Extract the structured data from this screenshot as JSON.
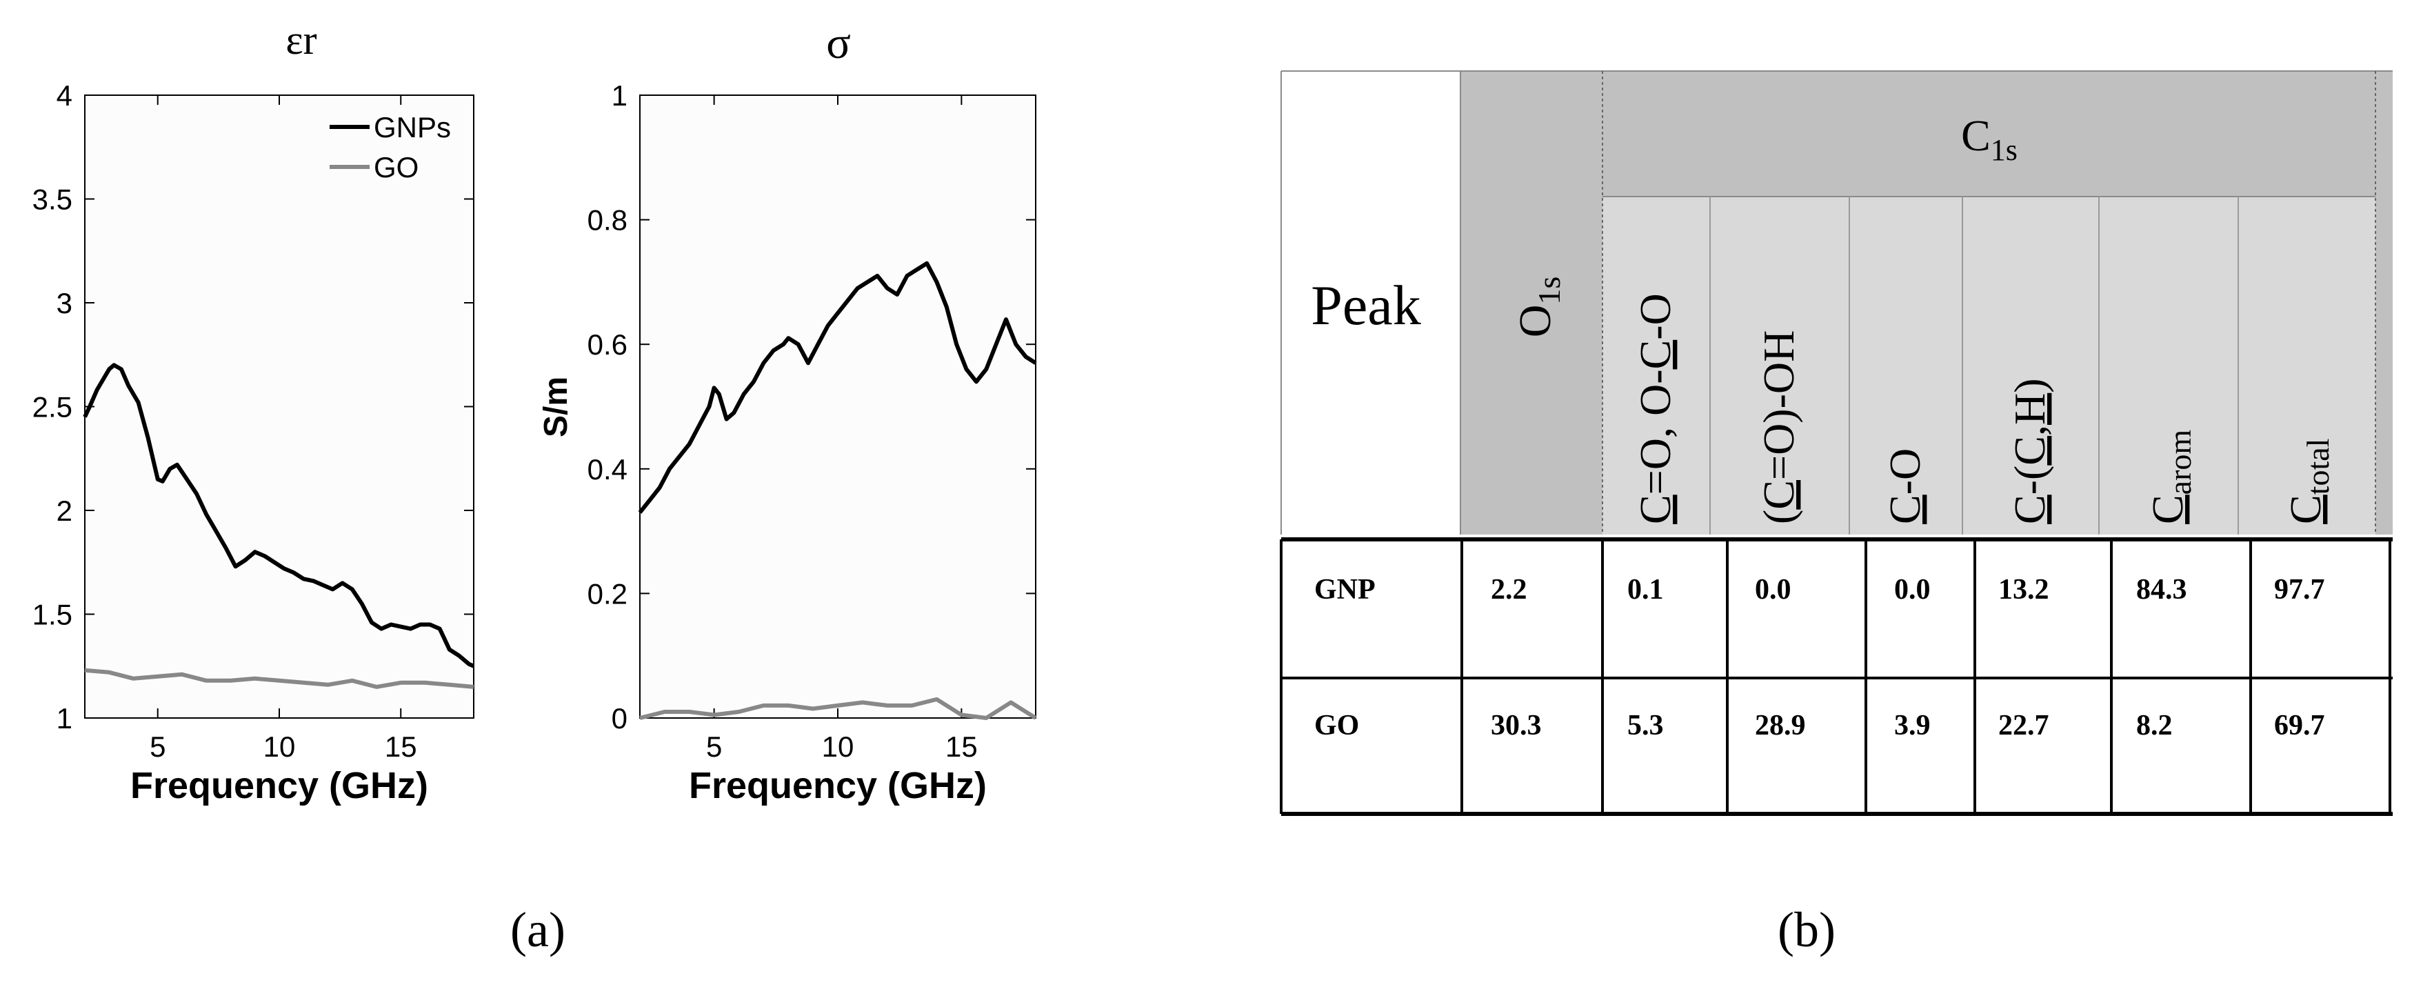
{
  "chart_data": [
    {
      "type": "line",
      "title": "εr",
      "xlabel": "Frequency (GHz)",
      "ylabel": "",
      "xlim": [
        2,
        18
      ],
      "ylim": [
        1,
        4
      ],
      "xticks": [
        "5",
        "10",
        "15"
      ],
      "yticks": [
        "1",
        "1.5",
        "2",
        "2.5",
        "3",
        "3.5",
        "4"
      ],
      "grid": false,
      "legend_position": "top-right",
      "series": [
        {
          "name": "GNPs",
          "color": "#000000",
          "x": [
            2.0,
            2.2,
            2.5,
            2.8,
            3.0,
            3.2,
            3.5,
            3.8,
            4.2,
            4.6,
            5.0,
            5.2,
            5.5,
            5.8,
            6.2,
            6.6,
            7.0,
            7.4,
            7.8,
            8.2,
            8.6,
            9.0,
            9.4,
            9.8,
            10.2,
            10.6,
            11.0,
            11.4,
            11.8,
            12.2,
            12.6,
            13.0,
            13.4,
            13.8,
            14.2,
            14.6,
            15.0,
            15.4,
            15.8,
            16.2,
            16.6,
            17.0,
            17.4,
            17.8,
            18.0
          ],
          "values": [
            2.45,
            2.5,
            2.58,
            2.64,
            2.68,
            2.7,
            2.68,
            2.6,
            2.52,
            2.35,
            2.15,
            2.14,
            2.2,
            2.22,
            2.15,
            2.08,
            1.98,
            1.9,
            1.82,
            1.73,
            1.76,
            1.8,
            1.78,
            1.75,
            1.72,
            1.7,
            1.67,
            1.66,
            1.64,
            1.62,
            1.65,
            1.62,
            1.55,
            1.46,
            1.43,
            1.45,
            1.44,
            1.43,
            1.45,
            1.45,
            1.43,
            1.33,
            1.3,
            1.26,
            1.25
          ]
        },
        {
          "name": "GO",
          "color": "#888888",
          "x": [
            2,
            3,
            4,
            5,
            6,
            7,
            8,
            9,
            10,
            11,
            12,
            13,
            14,
            15,
            16,
            17,
            18
          ],
          "values": [
            1.23,
            1.22,
            1.19,
            1.2,
            1.21,
            1.18,
            1.18,
            1.19,
            1.18,
            1.17,
            1.16,
            1.18,
            1.15,
            1.17,
            1.17,
            1.16,
            1.15
          ]
        }
      ]
    },
    {
      "type": "line",
      "title": "σ",
      "xlabel": "Frequency (GHz)",
      "ylabel": "S/m",
      "xlim": [
        2,
        18
      ],
      "ylim": [
        0,
        1
      ],
      "xticks": [
        "5",
        "10",
        "15"
      ],
      "yticks": [
        "0",
        "0.2",
        "0.4",
        "0.6",
        "0.8",
        "1"
      ],
      "grid": false,
      "series": [
        {
          "name": "GNPs",
          "color": "#000000",
          "x": [
            2.0,
            2.4,
            2.8,
            3.2,
            3.6,
            4.0,
            4.4,
            4.8,
            5.0,
            5.2,
            5.5,
            5.8,
            6.2,
            6.6,
            7.0,
            7.4,
            7.8,
            8.0,
            8.4,
            8.8,
            9.2,
            9.6,
            10.0,
            10.4,
            10.8,
            11.2,
            11.6,
            12.0,
            12.4,
            12.8,
            13.2,
            13.6,
            14.0,
            14.4,
            14.8,
            15.2,
            15.6,
            16.0,
            16.4,
            16.8,
            17.2,
            17.6,
            18.0
          ],
          "values": [
            0.33,
            0.35,
            0.37,
            0.4,
            0.42,
            0.44,
            0.47,
            0.5,
            0.53,
            0.52,
            0.48,
            0.49,
            0.52,
            0.54,
            0.57,
            0.59,
            0.6,
            0.61,
            0.6,
            0.57,
            0.6,
            0.63,
            0.65,
            0.67,
            0.69,
            0.7,
            0.71,
            0.69,
            0.68,
            0.71,
            0.72,
            0.73,
            0.7,
            0.66,
            0.6,
            0.56,
            0.54,
            0.56,
            0.6,
            0.64,
            0.6,
            0.58,
            0.57
          ]
        },
        {
          "name": "GO",
          "color": "#888888",
          "x": [
            2,
            3,
            4,
            5,
            6,
            7,
            8,
            9,
            10,
            11,
            12,
            13,
            14,
            15,
            16,
            17,
            18
          ],
          "values": [
            0.0,
            0.01,
            0.01,
            0.005,
            0.01,
            0.02,
            0.02,
            0.015,
            0.02,
            0.025,
            0.02,
            0.02,
            0.03,
            0.005,
            0.0,
            0.025,
            0.0
          ]
        }
      ]
    },
    {
      "type": "table",
      "header": {
        "peak": "Peak",
        "o1s": {
          "base": "O",
          "sub": "1s"
        },
        "c1s": {
          "base": "C",
          "sub": "1s"
        },
        "subcolumns": [
          {
            "parts": [
              {
                "t": "C",
                "u": true
              },
              {
                "t": "=O, O-"
              },
              {
                "t": "C",
                "u": true
              },
              {
                "t": "-O"
              }
            ]
          },
          {
            "parts": [
              {
                "t": "("
              },
              {
                "t": "C",
                "u": true
              },
              {
                "t": "=O)-OH"
              }
            ]
          },
          {
            "parts": [
              {
                "t": "C",
                "u": true
              },
              {
                "t": "-O"
              }
            ]
          },
          {
            "parts": [
              {
                "t": "C",
                "u": true
              },
              {
                "t": "-("
              },
              {
                "t": "C",
                "u": true
              },
              {
                "t": ","
              },
              {
                "t": "H",
                "u": true
              },
              {
                "t": ")"
              }
            ]
          },
          {
            "parts": [
              {
                "t": "C",
                "u": true
              },
              {
                "t": "arom",
                "sub": true
              }
            ]
          },
          {
            "parts": [
              {
                "t": "C",
                "u": true
              },
              {
                "t": "total",
                "sub": true
              }
            ]
          }
        ]
      },
      "rows": [
        [
          "GNP",
          "2.2",
          "0.1",
          "0.0",
          "0.0",
          "13.2",
          "84.3",
          "97.7"
        ],
        [
          "GO",
          "30.3",
          "5.3",
          "28.9",
          "3.9",
          "22.7",
          "8.2",
          "69.7"
        ]
      ]
    }
  ],
  "captions": {
    "a": "(a)",
    "b": "(b)"
  }
}
